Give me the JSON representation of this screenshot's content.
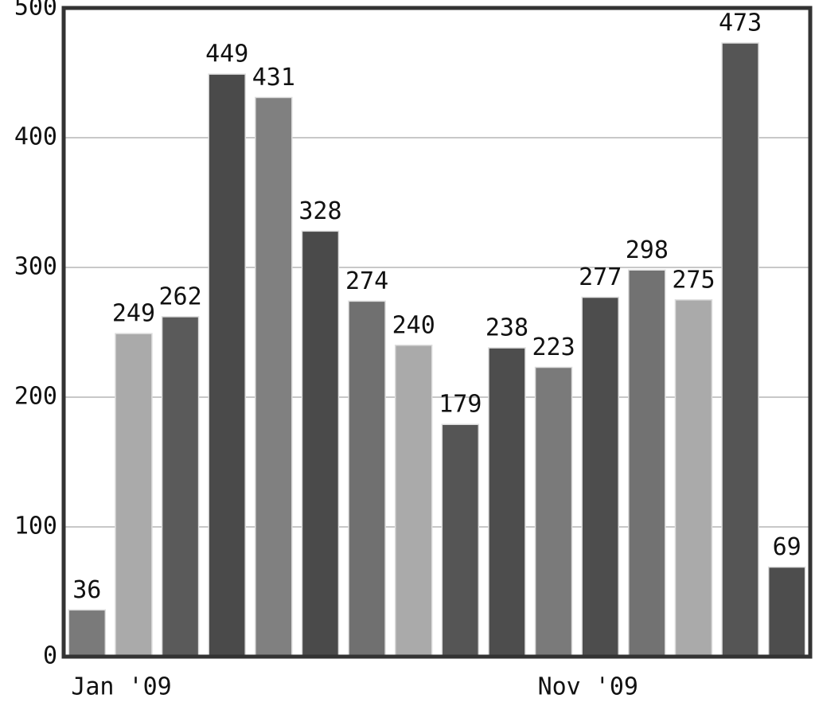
{
  "chart_data": {
    "type": "bar",
    "categories": [
      "Jan '09",
      null,
      null,
      null,
      null,
      null,
      null,
      null,
      null,
      null,
      "Nov '09",
      null,
      null,
      null,
      null,
      null
    ],
    "values": [
      36,
      249,
      262,
      449,
      431,
      328,
      274,
      240,
      179,
      238,
      223,
      277,
      298,
      275,
      473,
      69
    ],
    "colors": [
      "#7a7a7a",
      "#aaaaaa",
      "#5a5a5a",
      "#4a4a4a",
      "#808080",
      "#4a4a4a",
      "#707070",
      "#aaaaaa",
      "#555555",
      "#4d4d4d",
      "#7a7a7a",
      "#4d4d4d",
      "#727272",
      "#aaaaaa",
      "#555555",
      "#4d4d4d"
    ],
    "ylim": [
      0,
      500
    ],
    "yticks": [
      0,
      100,
      200,
      300,
      400,
      500
    ],
    "grid": true
  }
}
